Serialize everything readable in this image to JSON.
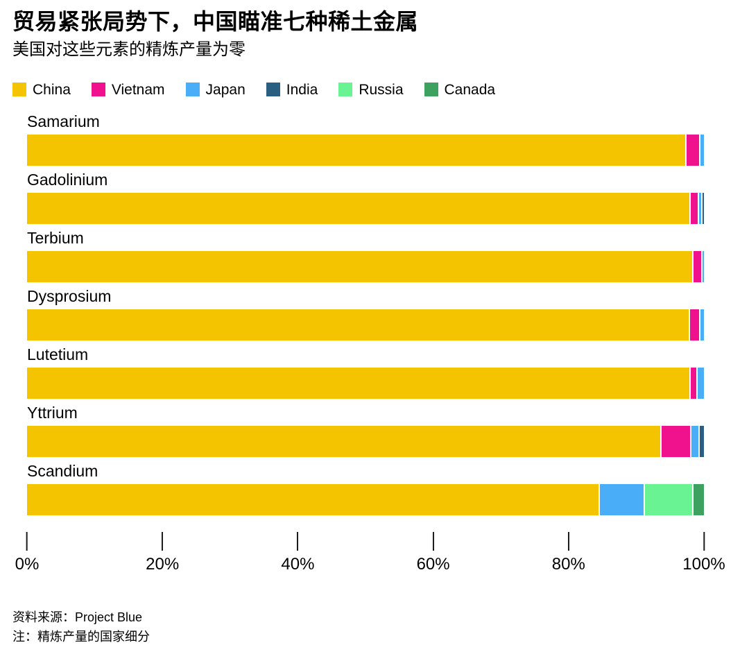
{
  "header": {
    "title": "贸易紧张局势下，中国瞄准七种稀土金属",
    "subtitle": "美国对这些元素的精炼产量为零"
  },
  "chart_data": {
    "type": "bar",
    "orientation": "horizontal",
    "stacked": true,
    "unit": "percent",
    "title": "贸易紧张局势下，中国瞄准七种稀土金属",
    "subtitle": "美国对这些元素的精炼产量为零",
    "legend_position": "top",
    "legend": [
      {
        "label": "China",
        "color": "#F5C400"
      },
      {
        "label": "Vietnam",
        "color": "#F0128C"
      },
      {
        "label": "Japan",
        "color": "#4AADF7"
      },
      {
        "label": "India",
        "color": "#2A5F82"
      },
      {
        "label": "Russia",
        "color": "#69F392"
      },
      {
        "label": "Canada",
        "color": "#3DA15F"
      }
    ],
    "x_axis": {
      "range": [
        0,
        100
      ],
      "ticks": [
        "0%",
        "20%",
        "40%",
        "60%",
        "80%",
        "100%"
      ],
      "grid": false
    },
    "categories": [
      "Samarium",
      "Gadolinium",
      "Terbium",
      "Dysprosium",
      "Lutetium",
      "Yttrium",
      "Scandium"
    ],
    "rows": [
      {
        "category": "Samarium",
        "segments": [
          {
            "name": "China",
            "value": 97.6
          },
          {
            "name": "Vietnam",
            "value": 1.9
          },
          {
            "name": "Japan",
            "value": 0.5
          }
        ]
      },
      {
        "category": "Gadolinium",
        "segments": [
          {
            "name": "China",
            "value": 98.5
          },
          {
            "name": "Vietnam",
            "value": 1.0
          },
          {
            "name": "Japan",
            "value": 0.3
          },
          {
            "name": "India",
            "value": 0.2
          }
        ]
      },
      {
        "category": "Terbium",
        "segments": [
          {
            "name": "China",
            "value": 98.7
          },
          {
            "name": "Vietnam",
            "value": 1.1
          },
          {
            "name": "Japan",
            "value": 0.2
          }
        ]
      },
      {
        "category": "Dysprosium",
        "segments": [
          {
            "name": "China",
            "value": 98.1
          },
          {
            "name": "Vietnam",
            "value": 1.4
          },
          {
            "name": "Japan",
            "value": 0.5
          }
        ]
      },
      {
        "category": "Lutetium",
        "segments": [
          {
            "name": "China",
            "value": 98.2
          },
          {
            "name": "Vietnam",
            "value": 0.9
          },
          {
            "name": "Japan",
            "value": 0.9
          }
        ]
      },
      {
        "category": "Yttrium",
        "segments": [
          {
            "name": "China",
            "value": 94.1
          },
          {
            "name": "Vietnam",
            "value": 4.3
          },
          {
            "name": "Japan",
            "value": 1.0
          },
          {
            "name": "India",
            "value": 0.6
          }
        ]
      },
      {
        "category": "Scandium",
        "segments": [
          {
            "name": "China",
            "value": 84.9
          },
          {
            "name": "Japan",
            "value": 6.5
          },
          {
            "name": "Russia",
            "value": 7.1
          },
          {
            "name": "Canada",
            "value": 1.5
          }
        ]
      }
    ]
  },
  "footer": {
    "source": "资料来源：Project Blue",
    "note": "注：精炼产量的国家细分"
  }
}
